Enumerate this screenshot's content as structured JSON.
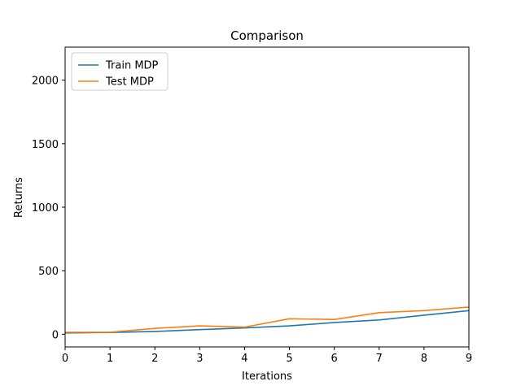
{
  "chart_data": {
    "type": "line",
    "title": "Comparison",
    "xlabel": "Iterations",
    "ylabel": "Returns",
    "xlim": [
      0,
      9
    ],
    "ylim": [
      -100,
      2260
    ],
    "xticks": [
      0,
      1,
      2,
      3,
      4,
      5,
      6,
      7,
      8,
      9
    ],
    "yticks": [
      0,
      500,
      1000,
      1500,
      2000
    ],
    "grid": false,
    "legend_position": "top-left",
    "x": [
      0,
      1,
      2,
      3,
      4,
      5,
      6,
      7,
      8,
      9
    ],
    "series": [
      {
        "name": "Train MDP",
        "color": "#1f77b4",
        "values": [
          10,
          14,
          22,
          36,
          50,
          66,
          92,
          112,
          150,
          186
        ]
      },
      {
        "name": "Test MDP",
        "color": "#ff7f0e",
        "values": [
          16,
          16,
          46,
          66,
          56,
          122,
          116,
          170,
          186,
          214
        ]
      }
    ]
  }
}
